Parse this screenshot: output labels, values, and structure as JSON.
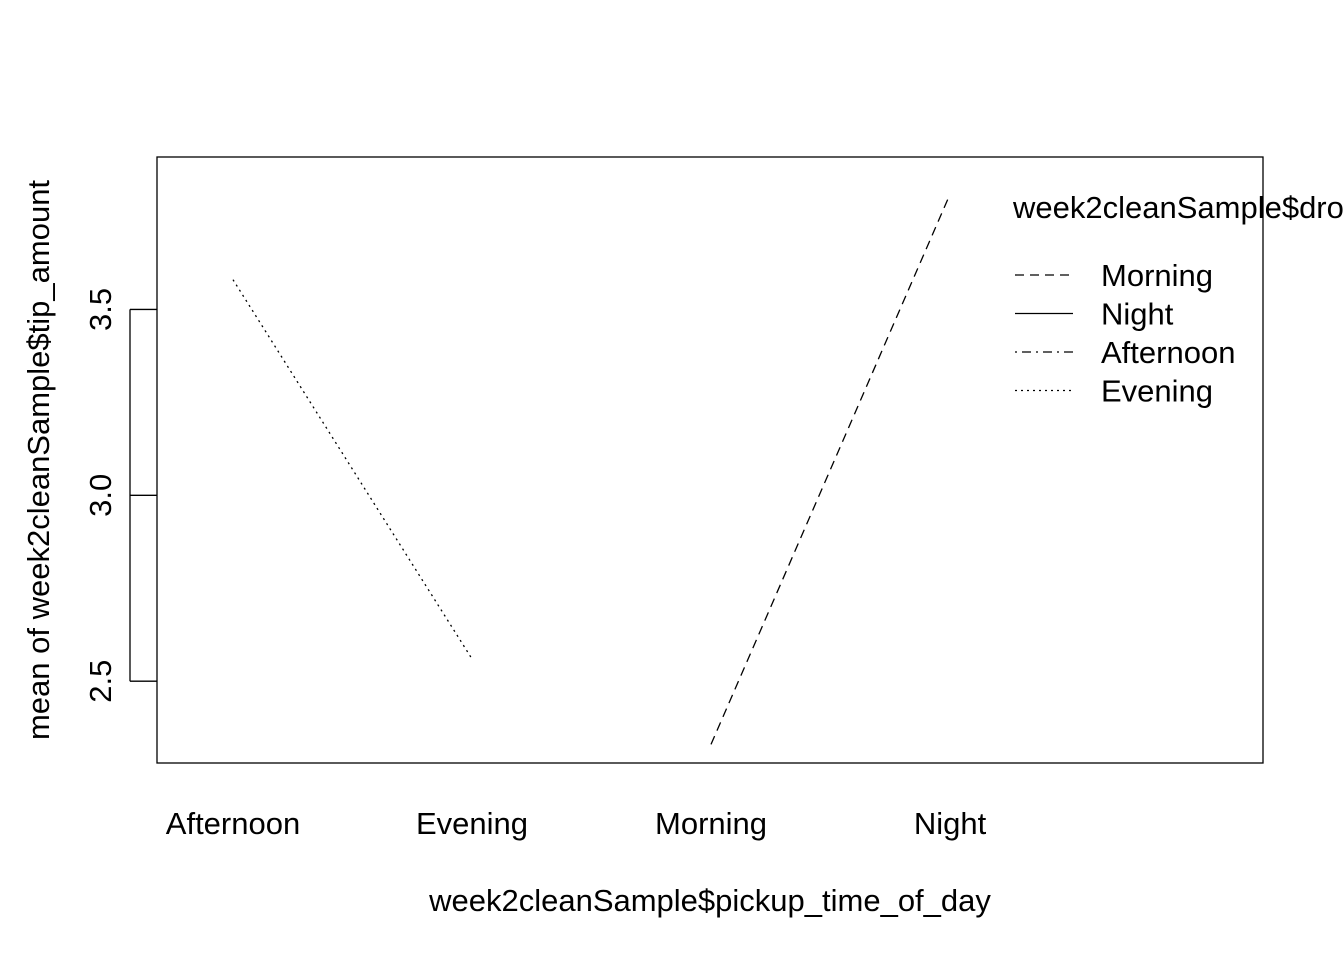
{
  "chart_data": {
    "type": "line",
    "title": "",
    "xlabel": "week2cleanSample$pickup_time_of_day",
    "ylabel": "mean of  week2cleanSample$tip_amount",
    "categories": [
      "Afternoon",
      "Evening",
      "Morning",
      "Night"
    ],
    "y_ticks": [
      "2.5",
      "3.0",
      "3.5"
    ],
    "ylim": [
      2.28,
      3.91
    ],
    "grid": false,
    "legend": {
      "title": "week2cleanSample$dro",
      "position": "top-right",
      "entries": [
        {
          "label": "Morning",
          "linetype": "dashed"
        },
        {
          "label": "Night",
          "linetype": "solid"
        },
        {
          "label": "Afternoon",
          "linetype": "dotdash"
        },
        {
          "label": "Evening",
          "linetype": "dotted"
        }
      ]
    },
    "series": [
      {
        "name": "Morning",
        "linetype": "dashed",
        "values": [
          null,
          null,
          2.33,
          3.81
        ]
      },
      {
        "name": "Night",
        "linetype": "solid",
        "values": [
          null,
          null,
          null,
          null
        ]
      },
      {
        "name": "Afternoon",
        "linetype": "dotdash",
        "values": [
          null,
          null,
          null,
          null
        ]
      },
      {
        "name": "Evening",
        "linetype": "dotted",
        "values": [
          3.58,
          2.56,
          null,
          null
        ]
      }
    ]
  }
}
